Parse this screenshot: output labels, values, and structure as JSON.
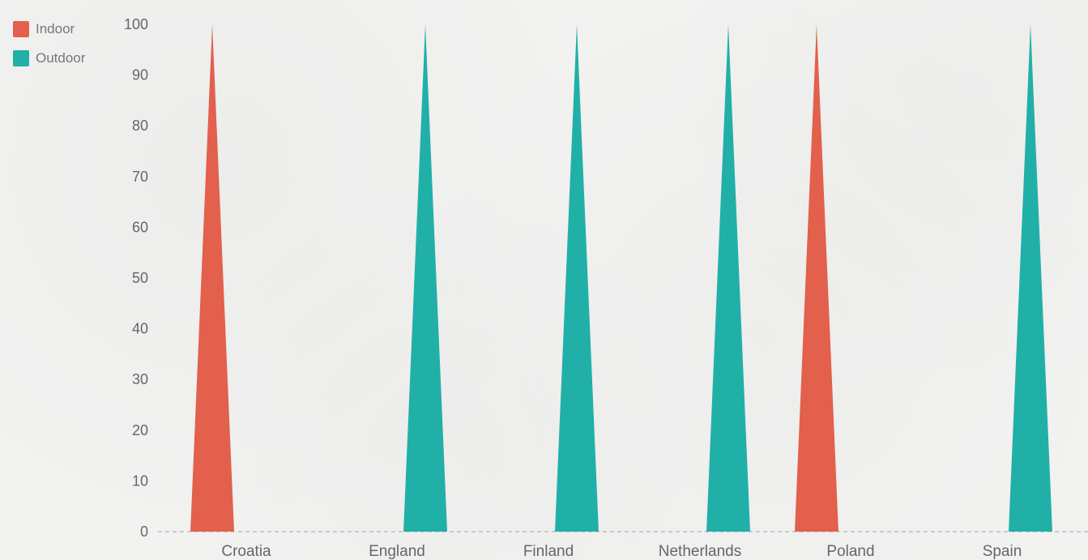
{
  "chart_data": {
    "type": "bar",
    "bar_shape": "triangle",
    "categories": [
      "Croatia",
      "England",
      "Finland",
      "Netherlands",
      "Poland",
      "Spain"
    ],
    "series": [
      {
        "name": "Indoor",
        "color": "#e2604c",
        "values": [
          100,
          0,
          0,
          0,
          100,
          0
        ]
      },
      {
        "name": "Outdoor",
        "color": "#21b0a8",
        "values": [
          0,
          100,
          100,
          100,
          0,
          100
        ]
      }
    ],
    "ylim": [
      0,
      100
    ],
    "yticks": [
      0,
      10,
      20,
      30,
      40,
      50,
      60,
      70,
      80,
      90,
      100
    ],
    "legend_position": "top-left",
    "grid": false
  }
}
